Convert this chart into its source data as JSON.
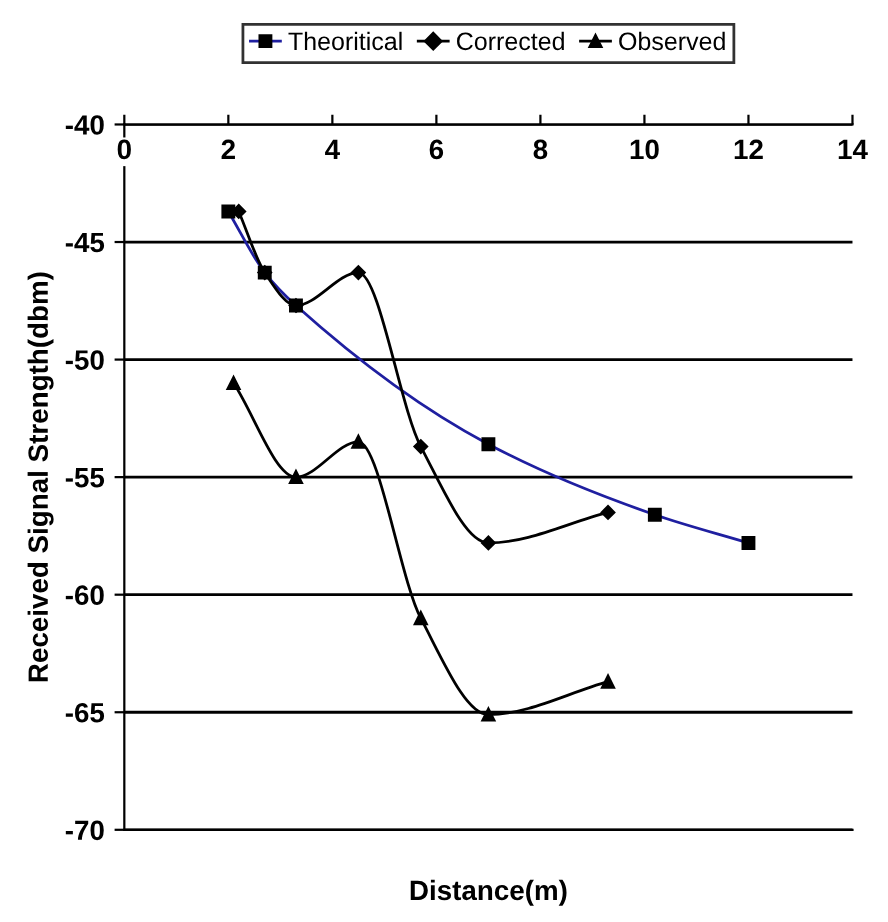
{
  "chart_data": {
    "type": "line",
    "xlabel": "Distance(m)",
    "ylabel": "Received Signal Strength(dbm)",
    "xlim": [
      0,
      14
    ],
    "xticks": [
      0,
      2,
      4,
      6,
      8,
      10,
      12,
      14
    ],
    "ylim": [
      -70,
      -40
    ],
    "yticks": [
      -70,
      -65,
      -60,
      -55,
      -50,
      -45,
      -40
    ],
    "grid": "y",
    "legend": "top",
    "series": [
      {
        "name": "Theoritical",
        "color": "#1f1fa0",
        "marker": "square",
        "x": [
          2,
          2.7,
          3.3,
          7,
          10.2,
          12
        ],
        "values": [
          -43.7,
          -46.3,
          -47.7,
          -53.6,
          -56.6,
          -57.8
        ]
      },
      {
        "name": "Corrected",
        "color": "#000000",
        "marker": "diamond",
        "x": [
          2.2,
          2.7,
          3.3,
          4.5,
          5.7,
          7,
          9.3
        ],
        "values": [
          -43.7,
          -46.3,
          -47.7,
          -46.3,
          -53.7,
          -57.8,
          -56.5
        ]
      },
      {
        "name": "Observed",
        "color": "#000000",
        "marker": "triangle",
        "x": [
          2.1,
          3.3,
          4.5,
          5.7,
          7,
          9.3
        ],
        "values": [
          -51,
          -55,
          -53.5,
          -61,
          -65.1,
          -63.7
        ]
      }
    ]
  }
}
